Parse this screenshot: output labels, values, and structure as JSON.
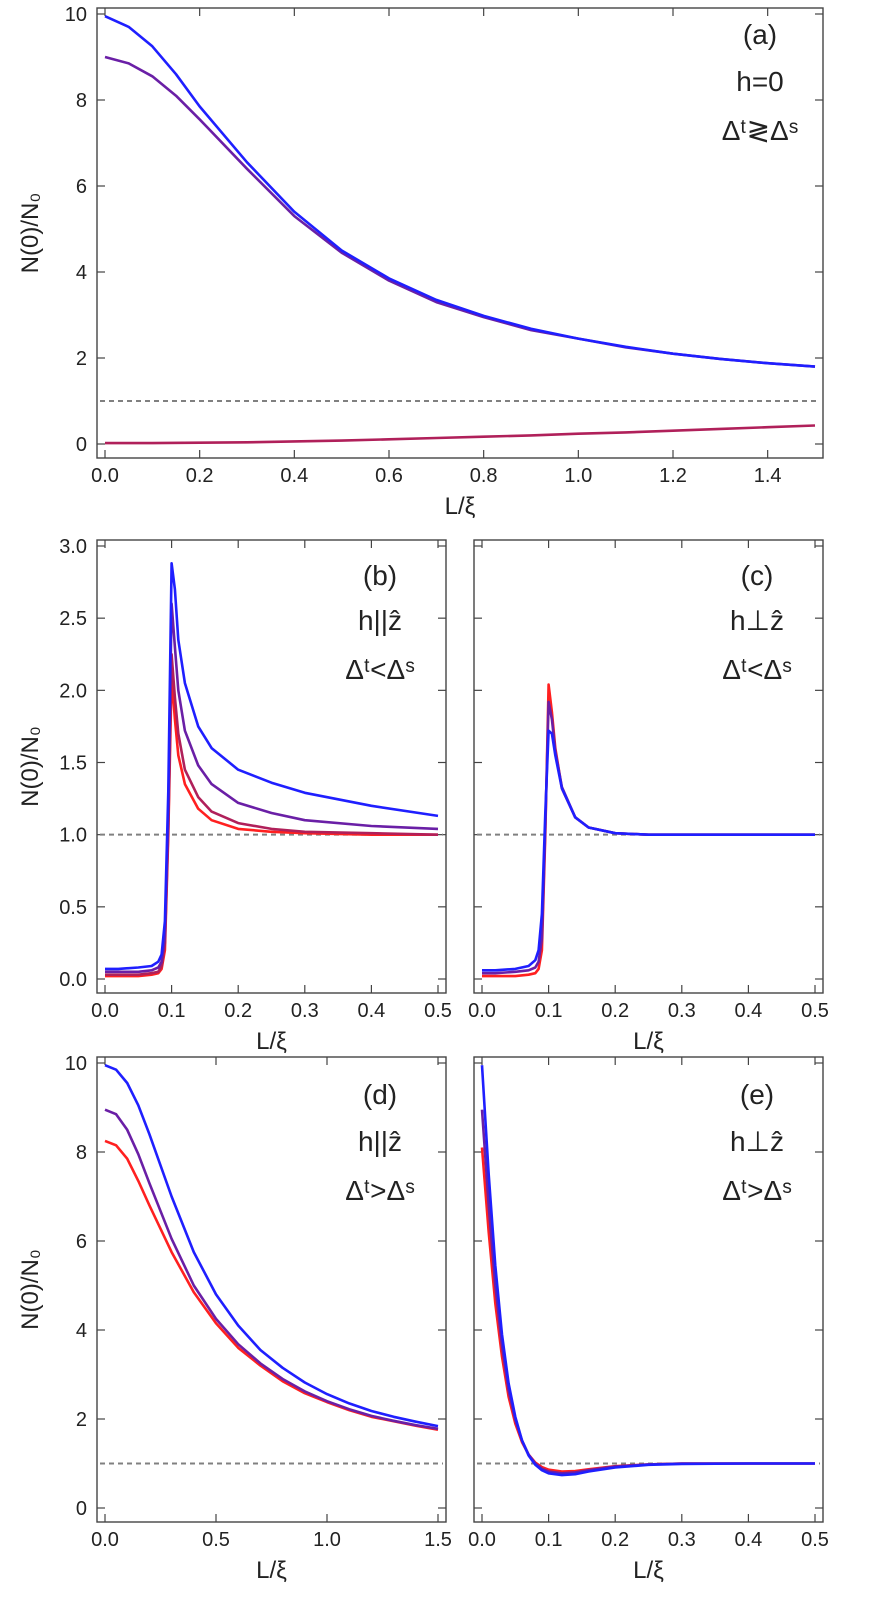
{
  "colors": {
    "blue": "#1f1fff",
    "purple": "#6a1fa6",
    "magenta": "#b0205a",
    "red": "#ff2020",
    "reference": "#808080",
    "axis": "#444444"
  },
  "chart_data": [
    {
      "id": "a",
      "type": "line",
      "xlabel": "L/ξ",
      "ylabel": "N(0)/N₀",
      "xlim": [
        0,
        1.5
      ],
      "ylim": [
        0,
        10
      ],
      "xticks": [
        "0.0",
        "0.2",
        "0.4",
        "0.6",
        "0.8",
        "1.0",
        "1.2",
        "1.4"
      ],
      "yticks": [
        "0",
        "2",
        "4",
        "6",
        "8",
        "10"
      ],
      "annotations": [
        "(a)",
        "h=0",
        "Δᵗ≷Δˢ"
      ],
      "reference_line": 1,
      "series": [
        {
          "name": "magenta",
          "color": "#b0205a",
          "x": [
            0,
            0.1,
            0.2,
            0.3,
            0.4,
            0.5,
            0.6,
            0.7,
            0.8,
            0.9,
            1.0,
            1.1,
            1.2,
            1.3,
            1.4,
            1.5
          ],
          "y": [
            0.02,
            0.02,
            0.03,
            0.04,
            0.06,
            0.08,
            0.11,
            0.14,
            0.17,
            0.2,
            0.24,
            0.27,
            0.31,
            0.35,
            0.39,
            0.43
          ]
        },
        {
          "name": "purple",
          "color": "#6a1fa6",
          "x": [
            0,
            0.05,
            0.1,
            0.15,
            0.2,
            0.3,
            0.4,
            0.5,
            0.6,
            0.7,
            0.8,
            0.9,
            1.0,
            1.1,
            1.2,
            1.3,
            1.4,
            1.5
          ],
          "y": [
            9.0,
            8.85,
            8.55,
            8.1,
            7.55,
            6.4,
            5.3,
            4.45,
            3.8,
            3.3,
            2.95,
            2.65,
            2.45,
            2.25,
            2.1,
            1.98,
            1.88,
            1.8
          ]
        },
        {
          "name": "blue",
          "color": "#1f1fff",
          "x": [
            0,
            0.05,
            0.1,
            0.15,
            0.2,
            0.3,
            0.4,
            0.5,
            0.6,
            0.7,
            0.8,
            0.9,
            1.0,
            1.1,
            1.2,
            1.3,
            1.4,
            1.5
          ],
          "y": [
            9.95,
            9.7,
            9.25,
            8.6,
            7.85,
            6.55,
            5.4,
            4.5,
            3.85,
            3.35,
            2.98,
            2.68,
            2.45,
            2.26,
            2.1,
            1.98,
            1.88,
            1.8
          ]
        }
      ]
    },
    {
      "id": "b",
      "type": "line",
      "xlabel": "L/ξ",
      "ylabel": "N(0)/N₀",
      "xlim": [
        0,
        0.5
      ],
      "ylim": [
        0,
        3
      ],
      "xticks": [
        "0.0",
        "0.1",
        "0.2",
        "0.3",
        "0.4",
        "0.5"
      ],
      "yticks": [
        "0.0",
        "0.5",
        "1.0",
        "1.5",
        "2.0",
        "2.5",
        "3.0"
      ],
      "annotations": [
        "(b)",
        "h||ẑ",
        "Δᵗ<Δˢ"
      ],
      "reference_line": 1,
      "series": [
        {
          "name": "red",
          "color": "#ff2020",
          "x": [
            0,
            0.02,
            0.05,
            0.07,
            0.08,
            0.085,
            0.09,
            0.095,
            0.1,
            0.105,
            0.11,
            0.12,
            0.14,
            0.16,
            0.2,
            0.25,
            0.3,
            0.4,
            0.5
          ],
          "y": [
            0.02,
            0.02,
            0.02,
            0.03,
            0.04,
            0.07,
            0.2,
            1.0,
            2.1,
            1.8,
            1.55,
            1.35,
            1.18,
            1.1,
            1.04,
            1.02,
            1.01,
            1.0,
            1.0
          ]
        },
        {
          "name": "magenta",
          "color": "#b0205a",
          "x": [
            0,
            0.02,
            0.05,
            0.07,
            0.08,
            0.085,
            0.09,
            0.095,
            0.1,
            0.105,
            0.11,
            0.12,
            0.14,
            0.16,
            0.2,
            0.25,
            0.3,
            0.4,
            0.5
          ],
          "y": [
            0.03,
            0.03,
            0.03,
            0.04,
            0.05,
            0.09,
            0.25,
            1.05,
            2.25,
            1.95,
            1.7,
            1.45,
            1.26,
            1.16,
            1.08,
            1.04,
            1.02,
            1.01,
            1.0
          ]
        },
        {
          "name": "purple",
          "color": "#6a1fa6",
          "x": [
            0,
            0.02,
            0.05,
            0.07,
            0.08,
            0.085,
            0.09,
            0.095,
            0.1,
            0.105,
            0.11,
            0.12,
            0.14,
            0.16,
            0.2,
            0.25,
            0.3,
            0.4,
            0.5
          ],
          "y": [
            0.05,
            0.05,
            0.05,
            0.06,
            0.08,
            0.12,
            0.3,
            1.15,
            2.6,
            2.3,
            2.0,
            1.72,
            1.48,
            1.35,
            1.22,
            1.15,
            1.1,
            1.06,
            1.04
          ]
        },
        {
          "name": "blue",
          "color": "#1f1fff",
          "x": [
            0,
            0.02,
            0.05,
            0.07,
            0.08,
            0.085,
            0.09,
            0.095,
            0.1,
            0.105,
            0.11,
            0.12,
            0.14,
            0.16,
            0.2,
            0.25,
            0.3,
            0.4,
            0.5
          ],
          "y": [
            0.07,
            0.07,
            0.08,
            0.09,
            0.12,
            0.17,
            0.4,
            1.3,
            2.88,
            2.7,
            2.35,
            2.05,
            1.75,
            1.6,
            1.45,
            1.36,
            1.29,
            1.2,
            1.13
          ]
        }
      ]
    },
    {
      "id": "c",
      "type": "line",
      "xlabel": "L/ξ",
      "ylabel": "",
      "xlim": [
        0,
        0.5
      ],
      "ylim": [
        0,
        3
      ],
      "xticks": [
        "0.0",
        "0.1",
        "0.2",
        "0.3",
        "0.4",
        "0.5"
      ],
      "yticks": [],
      "annotations": [
        "(c)",
        "h⊥ẑ",
        "Δᵗ<Δˢ"
      ],
      "reference_line": 1,
      "series": [
        {
          "name": "red",
          "color": "#ff2020",
          "x": [
            0,
            0.02,
            0.05,
            0.07,
            0.08,
            0.085,
            0.09,
            0.095,
            0.1,
            0.105,
            0.11,
            0.12,
            0.14,
            0.16,
            0.2,
            0.25,
            0.3,
            0.4,
            0.5
          ],
          "y": [
            0.02,
            0.02,
            0.02,
            0.03,
            0.04,
            0.07,
            0.2,
            1.0,
            2.04,
            1.85,
            1.6,
            1.32,
            1.12,
            1.05,
            1.01,
            1.0,
            1.0,
            1.0,
            1.0
          ]
        },
        {
          "name": "purple",
          "color": "#6a1fa6",
          "x": [
            0,
            0.02,
            0.05,
            0.07,
            0.08,
            0.085,
            0.09,
            0.095,
            0.1,
            0.105,
            0.11,
            0.12,
            0.14,
            0.16,
            0.2,
            0.25,
            0.3,
            0.4,
            0.5
          ],
          "y": [
            0.04,
            0.04,
            0.05,
            0.06,
            0.08,
            0.12,
            0.28,
            1.05,
            1.92,
            1.8,
            1.58,
            1.33,
            1.12,
            1.05,
            1.01,
            1.0,
            1.0,
            1.0,
            1.0
          ]
        },
        {
          "name": "blue",
          "color": "#1f1fff",
          "x": [
            0,
            0.02,
            0.05,
            0.07,
            0.08,
            0.085,
            0.09,
            0.095,
            0.1,
            0.105,
            0.11,
            0.12,
            0.14,
            0.16,
            0.2,
            0.25,
            0.3,
            0.4,
            0.5
          ],
          "y": [
            0.06,
            0.06,
            0.07,
            0.09,
            0.13,
            0.2,
            0.45,
            1.15,
            1.72,
            1.7,
            1.55,
            1.32,
            1.12,
            1.05,
            1.01,
            1.0,
            1.0,
            1.0,
            1.0
          ]
        }
      ]
    },
    {
      "id": "d",
      "type": "line",
      "xlabel": "L/ξ",
      "ylabel": "N(0)/N₀",
      "xlim": [
        0,
        1.5
      ],
      "ylim": [
        0,
        10
      ],
      "xticks": [
        "0.0",
        "0.5",
        "1.0",
        "1.5"
      ],
      "yticks": [
        "0",
        "2",
        "4",
        "6",
        "8",
        "10"
      ],
      "annotations": [
        "(d)",
        "h||ẑ",
        "Δᵗ>Δˢ"
      ],
      "reference_line": 1,
      "series": [
        {
          "name": "red",
          "color": "#ff2020",
          "x": [
            0,
            0.05,
            0.1,
            0.15,
            0.2,
            0.3,
            0.4,
            0.5,
            0.6,
            0.7,
            0.8,
            0.9,
            1.0,
            1.1,
            1.2,
            1.3,
            1.4,
            1.5
          ],
          "y": [
            8.25,
            8.15,
            7.85,
            7.35,
            6.8,
            5.75,
            4.85,
            4.15,
            3.6,
            3.2,
            2.85,
            2.58,
            2.38,
            2.2,
            2.05,
            1.95,
            1.85,
            1.76
          ]
        },
        {
          "name": "purple",
          "color": "#6a1fa6",
          "x": [
            0,
            0.05,
            0.1,
            0.15,
            0.2,
            0.3,
            0.4,
            0.5,
            0.6,
            0.7,
            0.8,
            0.9,
            1.0,
            1.1,
            1.2,
            1.3,
            1.4,
            1.5
          ],
          "y": [
            8.95,
            8.85,
            8.5,
            7.95,
            7.3,
            6.05,
            5.0,
            4.25,
            3.68,
            3.25,
            2.9,
            2.62,
            2.4,
            2.22,
            2.07,
            1.96,
            1.86,
            1.78
          ]
        },
        {
          "name": "blue",
          "color": "#1f1fff",
          "x": [
            0,
            0.05,
            0.1,
            0.15,
            0.2,
            0.3,
            0.4,
            0.5,
            0.6,
            0.7,
            0.8,
            0.9,
            1.0,
            1.1,
            1.2,
            1.3,
            1.4,
            1.5
          ],
          "y": [
            9.95,
            9.85,
            9.55,
            9.05,
            8.4,
            7.0,
            5.75,
            4.8,
            4.1,
            3.55,
            3.15,
            2.82,
            2.56,
            2.35,
            2.18,
            2.05,
            1.94,
            1.84
          ]
        }
      ]
    },
    {
      "id": "e",
      "type": "line",
      "xlabel": "L/ξ",
      "ylabel": "",
      "xlim": [
        0,
        0.5
      ],
      "ylim": [
        0,
        10
      ],
      "xticks": [
        "0.0",
        "0.1",
        "0.2",
        "0.3",
        "0.4",
        "0.5"
      ],
      "yticks": [],
      "annotations": [
        "(e)",
        "h⊥ẑ",
        "Δᵗ>Δˢ"
      ],
      "reference_line": 1,
      "series": [
        {
          "name": "red",
          "color": "#ff2020",
          "x": [
            0,
            0.01,
            0.02,
            0.03,
            0.04,
            0.05,
            0.06,
            0.07,
            0.08,
            0.09,
            0.1,
            0.12,
            0.14,
            0.16,
            0.2,
            0.25,
            0.3,
            0.4,
            0.5
          ],
          "y": [
            8.1,
            6.2,
            4.6,
            3.4,
            2.5,
            1.9,
            1.48,
            1.2,
            1.02,
            0.92,
            0.86,
            0.82,
            0.83,
            0.87,
            0.94,
            0.98,
            1.0,
            1.0,
            1.0
          ]
        },
        {
          "name": "purple",
          "color": "#6a1fa6",
          "x": [
            0,
            0.01,
            0.02,
            0.03,
            0.04,
            0.05,
            0.06,
            0.07,
            0.08,
            0.09,
            0.1,
            0.12,
            0.14,
            0.16,
            0.2,
            0.25,
            0.3,
            0.4,
            0.5
          ],
          "y": [
            8.95,
            6.8,
            5.0,
            3.65,
            2.65,
            1.98,
            1.52,
            1.2,
            1.0,
            0.88,
            0.82,
            0.78,
            0.8,
            0.85,
            0.93,
            0.98,
            1.0,
            1.0,
            1.0
          ]
        },
        {
          "name": "blue",
          "color": "#1f1fff",
          "x": [
            0,
            0.01,
            0.02,
            0.03,
            0.04,
            0.05,
            0.06,
            0.07,
            0.08,
            0.09,
            0.1,
            0.12,
            0.14,
            0.16,
            0.2,
            0.25,
            0.3,
            0.4,
            0.5
          ],
          "y": [
            9.95,
            7.5,
            5.45,
            3.9,
            2.8,
            2.05,
            1.52,
            1.18,
            0.97,
            0.85,
            0.78,
            0.74,
            0.76,
            0.82,
            0.91,
            0.97,
            0.99,
            1.0,
            1.0
          ]
        }
      ]
    }
  ]
}
